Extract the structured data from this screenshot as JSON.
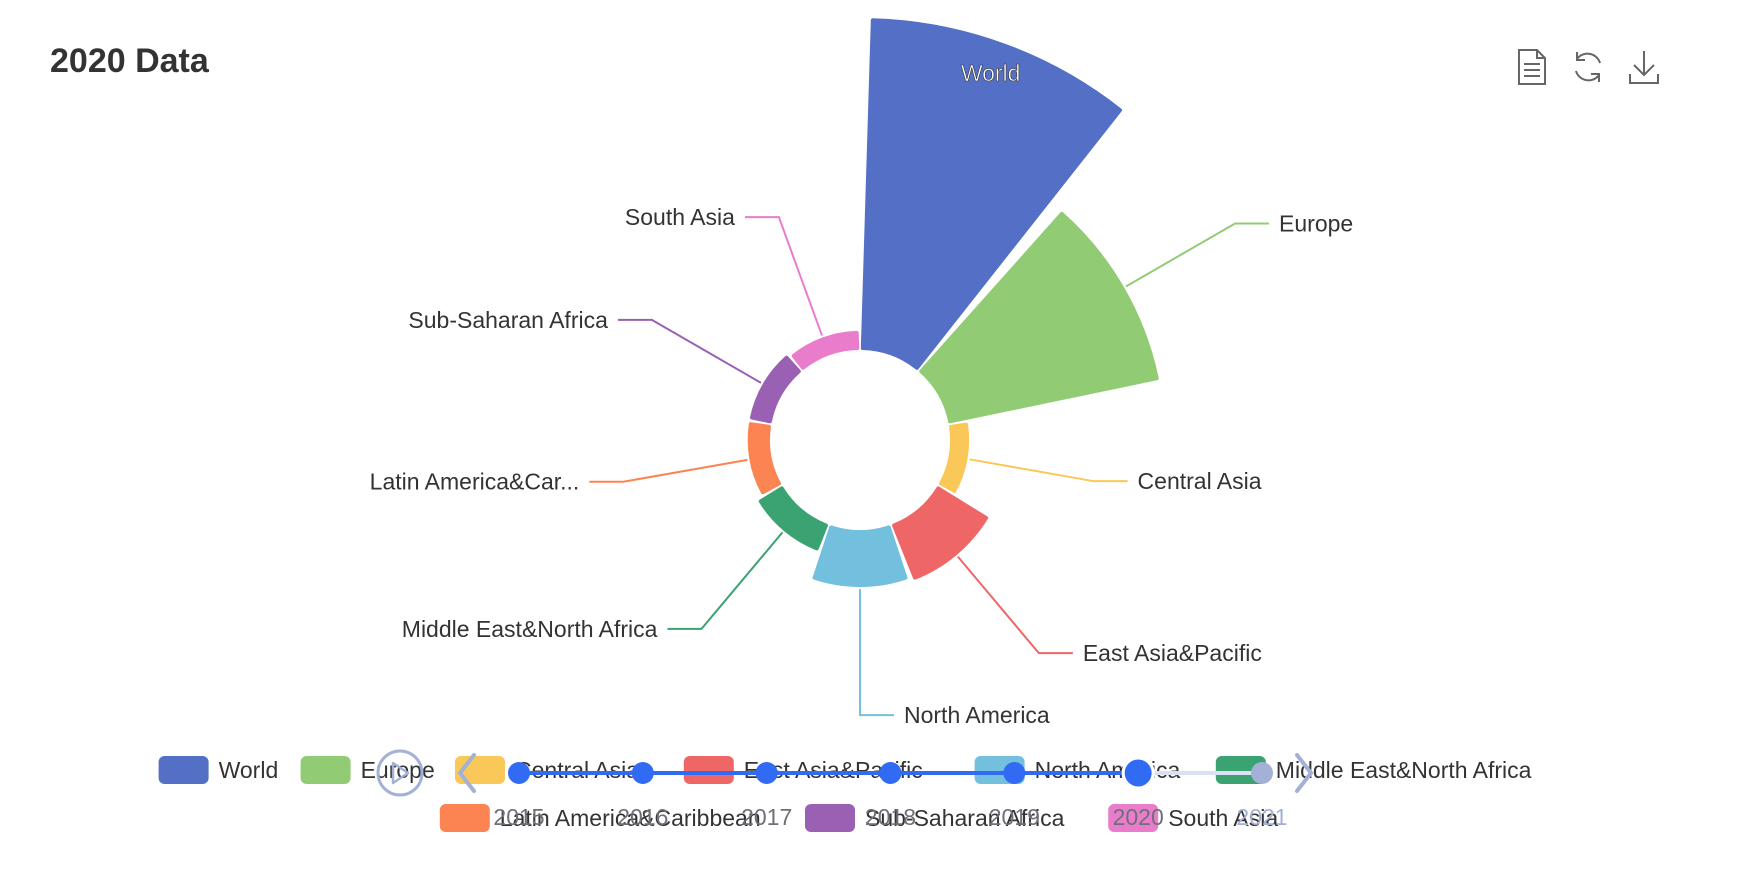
{
  "title": "2020 Data",
  "toolbox": {
    "icons": [
      "data-view-icon",
      "restore-icon",
      "save-image-icon"
    ]
  },
  "chart_data": {
    "type": "pie",
    "subtype": "nightingale-rose",
    "title": "2020 Data",
    "slices": [
      {
        "name": "World",
        "label": "World",
        "value": 100,
        "color": "#5470c6",
        "label_position": "inside"
      },
      {
        "name": "Europe",
        "label": "Europe",
        "value": 63,
        "color": "#91cc75",
        "label_position": "outside"
      },
      {
        "name": "Central Asia",
        "label": "Central Asia",
        "value": 1,
        "color": "#fac858",
        "label_position": "outside"
      },
      {
        "name": "East Asia&Pacific",
        "label": "East Asia&Pacific",
        "value": 14,
        "color": "#ee6666",
        "label_position": "outside"
      },
      {
        "name": "North America",
        "label": "North America",
        "value": 13,
        "color": "#73c0de",
        "label_position": "outside"
      },
      {
        "name": "Middle East&North Africa",
        "label": "Middle East&North Africa",
        "value": 4,
        "color": "#3ba272",
        "label_position": "outside"
      },
      {
        "name": "Latin America&Caribbean",
        "label": "Latin America&Car...",
        "value": 2,
        "color": "#fc8452",
        "label_position": "outside"
      },
      {
        "name": "Sub-Saharan Africa",
        "label": "Sub-Saharan Africa",
        "value": 2,
        "color": "#9a60b4",
        "label_position": "outside"
      },
      {
        "name": "South Asia",
        "label": "South Asia",
        "value": 1,
        "color": "#ea7ccc",
        "label_position": "outside"
      }
    ],
    "legend": {
      "position": "bottom",
      "items": [
        "World",
        "Europe",
        "Central Asia",
        "East Asia&Pacific",
        "North America",
        "Middle East&North Africa",
        "Latin America&Caribbean",
        "Sub-Saharan Africa",
        "South Asia"
      ]
    },
    "timeline": {
      "years": [
        "2015",
        "2016",
        "2017",
        "2018",
        "2019",
        "2020",
        "2021"
      ],
      "current": "2020"
    }
  }
}
